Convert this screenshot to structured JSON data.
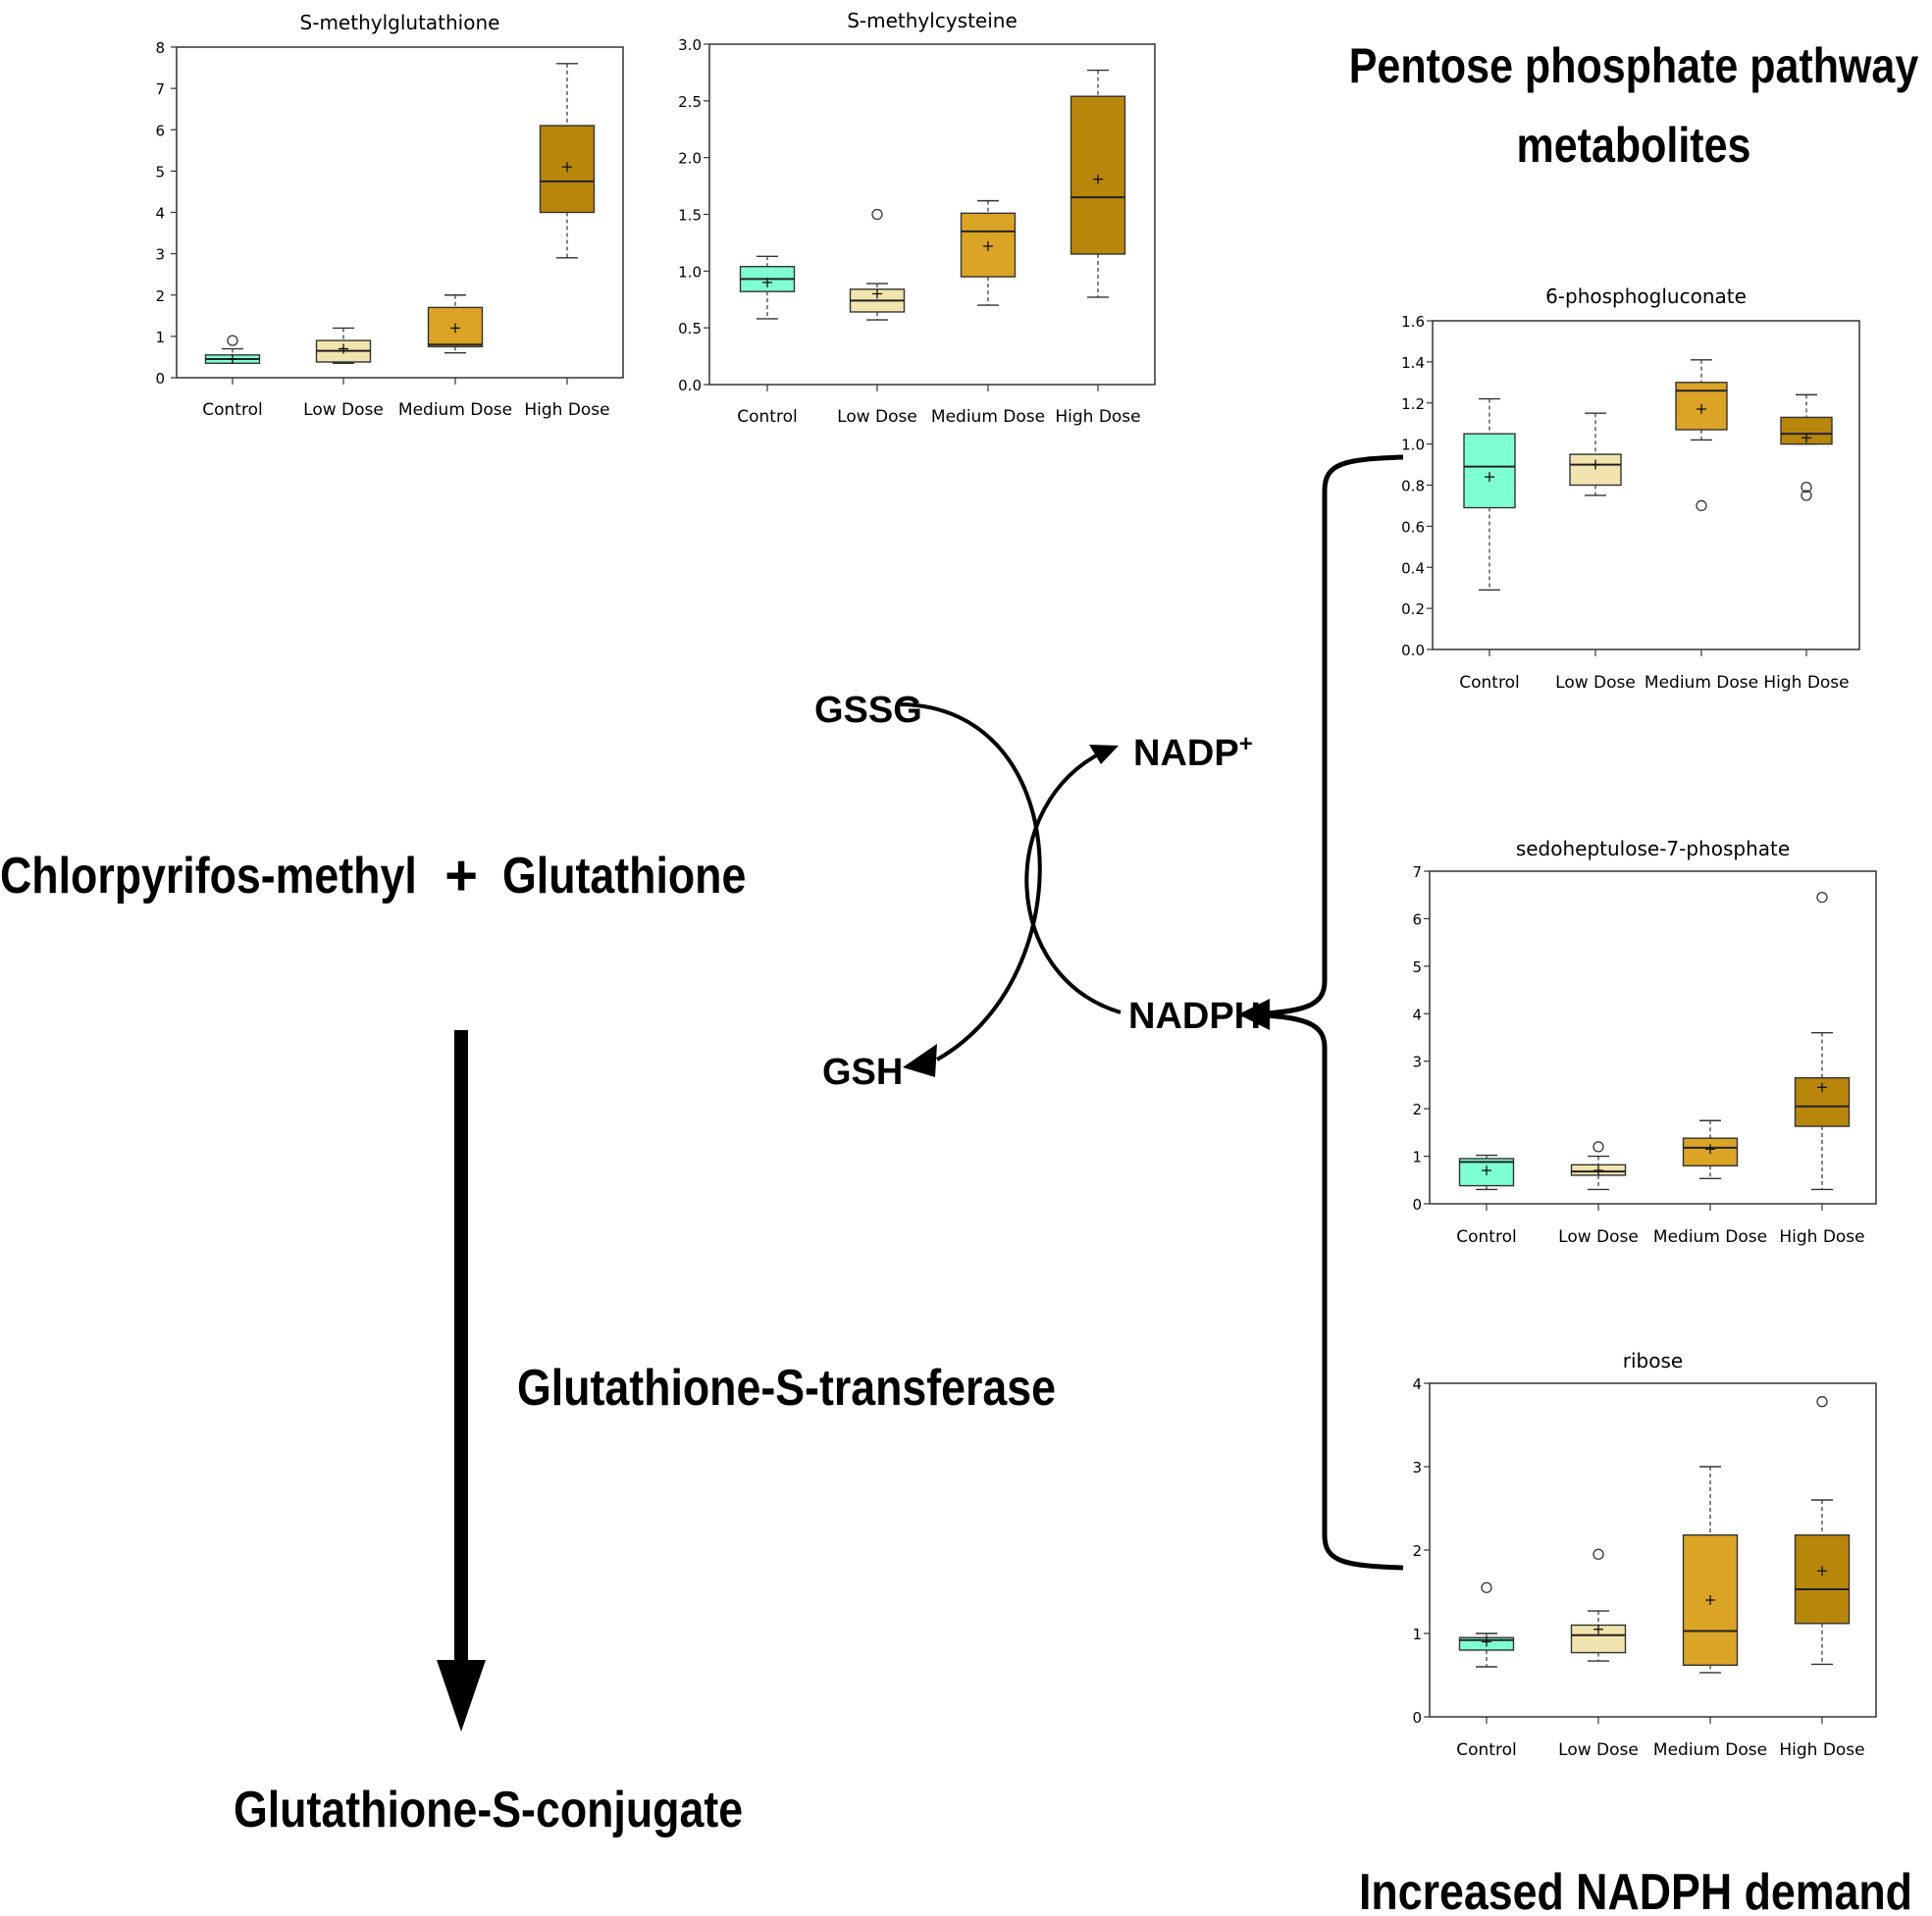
{
  "diagram": {
    "pathway_title_line1": "Pentose phosphate pathway",
    "pathway_title_line2": "metabolites",
    "reactant_left": "Chlorpyrifos-methyl",
    "plus": "+",
    "reactant_right": "Glutathione",
    "enzyme": "Glutathione-S-transferase",
    "product": "Glutathione-S-conjugate",
    "gssg": "GSSG",
    "gsh": "GSH",
    "nadp": "NADP",
    "nadp_sup": "+",
    "nadph": "NADPH",
    "footer": "Increased NADPH demand"
  },
  "colors": {
    "control": "#7fffd4",
    "low": "#f2e4ae",
    "medium": "#dba425",
    "high": "#b8860b"
  },
  "chart_data": [
    {
      "type": "box",
      "title": "S-methylglutathione",
      "categories": [
        "Control",
        "Low Dose",
        "Medium Dose",
        "High Dose"
      ],
      "yticks": [
        0,
        1,
        2,
        3,
        4,
        5,
        6,
        7,
        8
      ],
      "ytick_labels": [
        "0",
        "1",
        "2",
        "3",
        "4",
        "5",
        "6",
        "7",
        "8"
      ],
      "ylim": [
        0,
        8
      ],
      "boxes": [
        {
          "whisker_low": 0.35,
          "q1": 0.35,
          "median": 0.45,
          "q3": 0.55,
          "whisker_high": 0.7,
          "mean": 0.45,
          "outliers": [
            0.9
          ]
        },
        {
          "whisker_low": 0.35,
          "q1": 0.38,
          "median": 0.65,
          "q3": 0.9,
          "whisker_high": 1.2,
          "mean": 0.7,
          "outliers": []
        },
        {
          "whisker_low": 0.6,
          "q1": 0.75,
          "median": 0.8,
          "q3": 1.7,
          "whisker_high": 2.0,
          "mean": 1.2,
          "outliers": []
        },
        {
          "whisker_low": 2.9,
          "q1": 4.0,
          "median": 4.75,
          "q3": 6.1,
          "whisker_high": 7.6,
          "mean": 5.1,
          "outliers": []
        }
      ]
    },
    {
      "type": "box",
      "title": "S-methylcysteine",
      "categories": [
        "Control",
        "Low Dose",
        "Medium Dose",
        "High Dose"
      ],
      "yticks": [
        0,
        0.5,
        1,
        1.5,
        2,
        2.5,
        3
      ],
      "ytick_labels": [
        "0.0",
        "0.5",
        "1.0",
        "1.5",
        "2.0",
        "2.5",
        "3.0"
      ],
      "ylim": [
        0,
        3
      ],
      "boxes": [
        {
          "whisker_low": 0.58,
          "q1": 0.82,
          "median": 0.93,
          "q3": 1.04,
          "whisker_high": 1.13,
          "mean": 0.9,
          "outliers": []
        },
        {
          "whisker_low": 0.57,
          "q1": 0.64,
          "median": 0.74,
          "q3": 0.84,
          "whisker_high": 0.89,
          "mean": 0.8,
          "outliers": [
            1.5
          ]
        },
        {
          "whisker_low": 0.7,
          "q1": 0.95,
          "median": 1.35,
          "q3": 1.51,
          "whisker_high": 1.62,
          "mean": 1.22,
          "outliers": []
        },
        {
          "whisker_low": 0.77,
          "q1": 1.15,
          "median": 1.65,
          "q3": 2.54,
          "whisker_high": 2.77,
          "mean": 1.81,
          "outliers": []
        }
      ]
    },
    {
      "type": "box",
      "title": "6-phosphogluconate",
      "categories": [
        "Control",
        "Low Dose",
        "Medium Dose",
        "High Dose"
      ],
      "yticks": [
        0,
        0.2,
        0.4,
        0.6,
        0.8,
        1,
        1.2,
        1.4,
        1.6
      ],
      "ytick_labels": [
        "0.0",
        "0.2",
        "0.4",
        "0.6",
        "0.8",
        "1.0",
        "1.2",
        "1.4",
        "1.6"
      ],
      "ylim": [
        0,
        1.6
      ],
      "boxes": [
        {
          "whisker_low": 0.29,
          "q1": 0.69,
          "median": 0.89,
          "q3": 1.05,
          "whisker_high": 1.22,
          "mean": 0.84,
          "outliers": []
        },
        {
          "whisker_low": 0.75,
          "q1": 0.8,
          "median": 0.9,
          "q3": 0.95,
          "whisker_high": 1.15,
          "mean": 0.9,
          "outliers": []
        },
        {
          "whisker_low": 1.02,
          "q1": 1.07,
          "median": 1.26,
          "q3": 1.3,
          "whisker_high": 1.41,
          "mean": 1.17,
          "outliers": [
            0.7
          ]
        },
        {
          "whisker_low": 1.0,
          "q1": 1.0,
          "median": 1.05,
          "q3": 1.13,
          "whisker_high": 1.24,
          "mean": 1.03,
          "outliers": [
            0.75,
            0.79
          ]
        }
      ]
    },
    {
      "type": "box",
      "title": "sedoheptulose-7-phosphate",
      "categories": [
        "Control",
        "Low Dose",
        "Medium Dose",
        "High Dose"
      ],
      "yticks": [
        0,
        1,
        2,
        3,
        4,
        5,
        6,
        7
      ],
      "ytick_labels": [
        "0",
        "1",
        "2",
        "3",
        "4",
        "5",
        "6",
        "7"
      ],
      "ylim": [
        0,
        7
      ],
      "boxes": [
        {
          "whisker_low": 0.3,
          "q1": 0.38,
          "median": 0.88,
          "q3": 0.95,
          "whisker_high": 1.02,
          "mean": 0.7,
          "outliers": []
        },
        {
          "whisker_low": 0.3,
          "q1": 0.6,
          "median": 0.68,
          "q3": 0.82,
          "whisker_high": 1.0,
          "mean": 0.7,
          "outliers": [
            1.2
          ]
        },
        {
          "whisker_low": 0.53,
          "q1": 0.8,
          "median": 1.18,
          "q3": 1.38,
          "whisker_high": 1.75,
          "mean": 1.15,
          "outliers": []
        },
        {
          "whisker_low": 0.3,
          "q1": 1.63,
          "median": 2.05,
          "q3": 2.65,
          "whisker_high": 3.6,
          "mean": 2.45,
          "outliers": [
            6.45
          ]
        }
      ]
    },
    {
      "type": "box",
      "title": "ribose",
      "categories": [
        "Control",
        "Low Dose",
        "Medium Dose",
        "High Dose"
      ],
      "yticks": [
        0,
        1,
        2,
        3,
        4
      ],
      "ytick_labels": [
        "0",
        "1",
        "2",
        "3",
        "4"
      ],
      "ylim": [
        0,
        4
      ],
      "boxes": [
        {
          "whisker_low": 0.6,
          "q1": 0.8,
          "median": 0.92,
          "q3": 0.95,
          "whisker_high": 1.0,
          "mean": 0.9,
          "outliers": [
            1.55
          ]
        },
        {
          "whisker_low": 0.67,
          "q1": 0.77,
          "median": 0.98,
          "q3": 1.1,
          "whisker_high": 1.27,
          "mean": 1.05,
          "outliers": [
            1.95
          ]
        },
        {
          "whisker_low": 0.53,
          "q1": 0.62,
          "median": 1.03,
          "q3": 2.18,
          "whisker_high": 3.0,
          "mean": 1.4,
          "outliers": []
        },
        {
          "whisker_low": 0.63,
          "q1": 1.12,
          "median": 1.53,
          "q3": 2.18,
          "whisker_high": 2.6,
          "mean": 1.75,
          "outliers": [
            3.78
          ]
        }
      ]
    }
  ]
}
